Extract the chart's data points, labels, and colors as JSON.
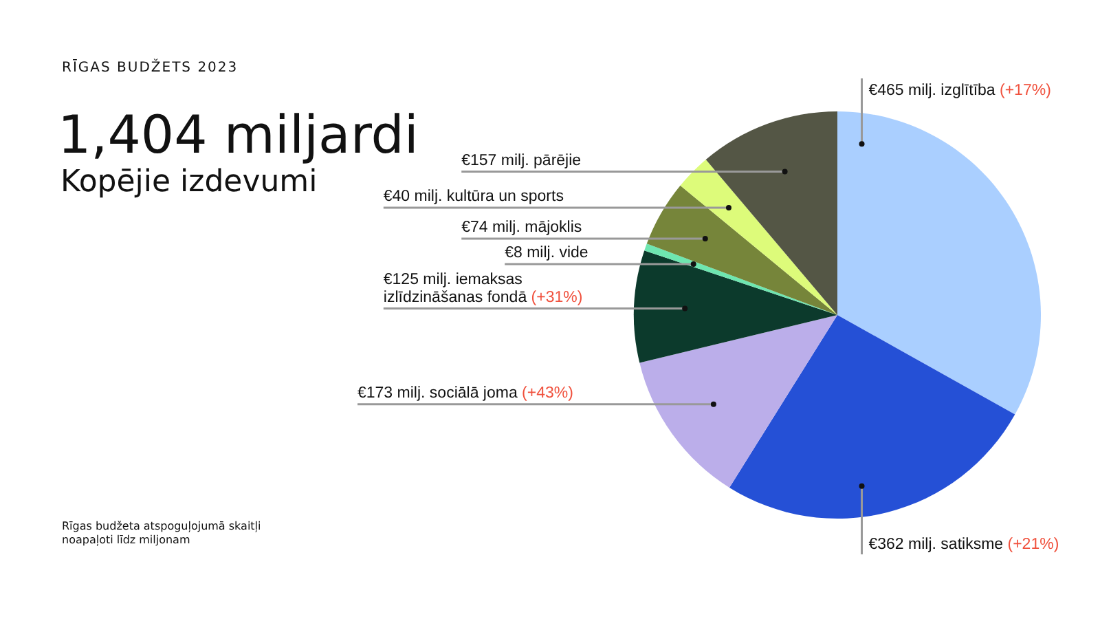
{
  "chart_data": {
    "type": "pie",
    "title": "1,404 miljardi",
    "subtitle": "Kopējie izdevumi",
    "categories": [
      "izglītība",
      "satiksme",
      "sociālā joma",
      "iemaksas izlīdzināšanas fondā",
      "vide",
      "mājoklis",
      "kultūra un sports",
      "pārējie"
    ],
    "values": [
      465,
      362,
      173,
      125,
      8,
      74,
      40,
      157
    ],
    "value_labels": [
      "€465 milj.",
      "€362 milj.",
      "€173 milj.",
      "€125 milj.",
      "€8 milj.",
      "€74 milj.",
      "€40 milj.",
      "€157 milj."
    ],
    "colors": [
      "#aacfff",
      "#2550d6",
      "#bbaeea",
      "#0c3a2c",
      "#6ee6b0",
      "#76853a",
      "#ddfb7a",
      "#545645"
    ],
    "annotations": [
      "RĪGAS BUDŽETS 2023",
      {
        "text": "(+17%)",
        "x": "izglītība"
      },
      {
        "text": "(+21%)",
        "x": "satiksme"
      },
      {
        "text": "(+43%)",
        "x": "sociālā joma"
      },
      {
        "text": "(+31%)",
        "x": "iemaksas izlīdzināšanas fondā"
      },
      "Rīgas budžeta atspoguļojumā skaitļi noapaļoti līdz miljonam"
    ],
    "legend": false
  }
}
